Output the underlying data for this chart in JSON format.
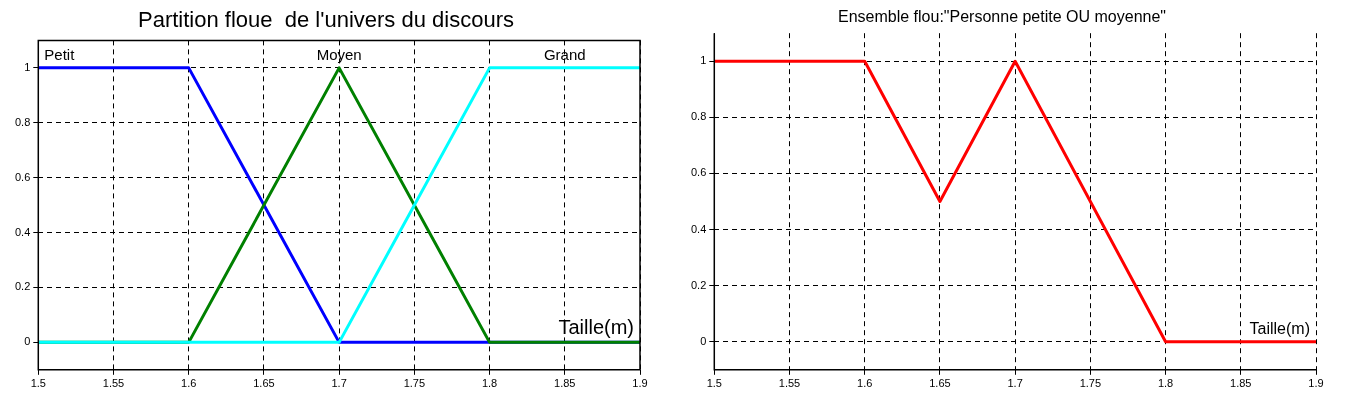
{
  "chart_data": [
    {
      "type": "line",
      "title": "Partition floue  de l'univers du discours",
      "xlabel": "Taille(m)",
      "xlim": [
        1.5,
        1.9
      ],
      "xticks": [
        1.5,
        1.55,
        1.6,
        1.65,
        1.7,
        1.75,
        1.8,
        1.85,
        1.9
      ],
      "ylim": [
        -0.1,
        1.1
      ],
      "yticks": [
        0,
        0.2,
        0.4,
        0.6,
        0.8,
        1
      ],
      "grid": true,
      "legend": false,
      "marker": "none",
      "line_style": "solid",
      "series": [
        {
          "name": "Petit",
          "color": "#0000ff",
          "x": [
            1.5,
            1.6,
            1.7,
            1.9
          ],
          "values": [
            1,
            1,
            0,
            0
          ]
        },
        {
          "name": "Moyen",
          "color": "#008000",
          "x": [
            1.5,
            1.6,
            1.7,
            1.8,
            1.9
          ],
          "values": [
            0,
            0,
            1,
            0,
            0
          ]
        },
        {
          "name": "Grand",
          "color": "#00ffff",
          "x": [
            1.5,
            1.7,
            1.8,
            1.9
          ],
          "values": [
            0,
            0,
            1,
            1
          ]
        }
      ]
    },
    {
      "type": "line",
      "title": "Ensemble flou:\"Personne petite OU moyenne\"",
      "xlabel": "Taille(m)",
      "xlim": [
        1.5,
        1.9
      ],
      "xticks": [
        1.5,
        1.55,
        1.6,
        1.65,
        1.7,
        1.75,
        1.8,
        1.85,
        1.9
      ],
      "ylim": [
        -0.1,
        1.1
      ],
      "yticks": [
        0,
        0.2,
        0.4,
        0.6,
        0.8,
        1
      ],
      "grid": true,
      "legend": false,
      "marker": "none",
      "line_style": "solid",
      "series": [
        {
          "color": "#ff0000",
          "x": [
            1.5,
            1.6,
            1.65,
            1.7,
            1.8,
            1.9
          ],
          "values": [
            1,
            1,
            0.5,
            1,
            0,
            0
          ]
        }
      ]
    }
  ]
}
